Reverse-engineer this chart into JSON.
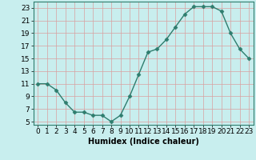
{
  "x": [
    0,
    1,
    2,
    3,
    4,
    5,
    6,
    7,
    8,
    9,
    10,
    11,
    12,
    13,
    14,
    15,
    16,
    17,
    18,
    19,
    20,
    21,
    22,
    23
  ],
  "y": [
    11,
    11,
    10,
    8,
    6.5,
    6.5,
    6,
    6,
    5,
    6,
    9,
    12.5,
    16,
    16.5,
    18,
    20,
    22,
    23.2,
    23.2,
    23.2,
    22.5,
    19,
    16.5,
    15
  ],
  "line_color": "#2e7d6e",
  "marker": "D",
  "marker_size": 2.5,
  "background_color": "#c8eeee",
  "grid_color": "#d9a0a0",
  "xlabel": "Humidex (Indice chaleur)",
  "ylim": [
    4.5,
    24
  ],
  "xlim": [
    -0.5,
    23.5
  ],
  "yticks": [
    5,
    7,
    9,
    11,
    13,
    15,
    17,
    19,
    21,
    23
  ],
  "xticks": [
    0,
    1,
    2,
    3,
    4,
    5,
    6,
    7,
    8,
    9,
    10,
    11,
    12,
    13,
    14,
    15,
    16,
    17,
    18,
    19,
    20,
    21,
    22,
    23
  ],
  "xlabel_fontsize": 7,
  "tick_fontsize": 6.5
}
